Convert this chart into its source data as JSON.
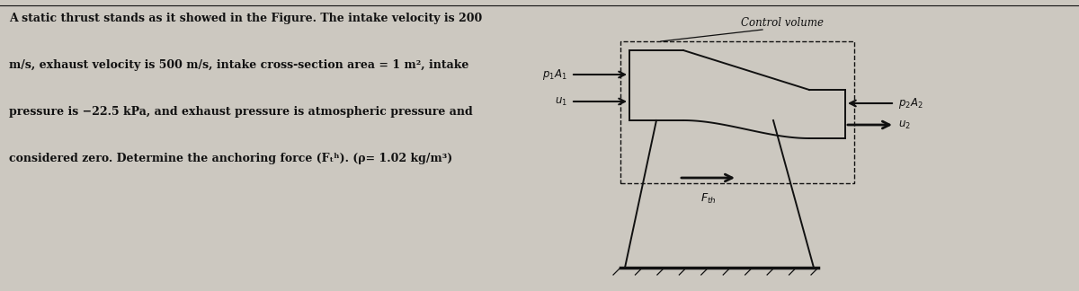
{
  "bg_color": "#ccc8c0",
  "text_color": "#111111",
  "fig_width": 12.0,
  "fig_height": 3.24,
  "problem_text_lines": [
    "A static thrust stands as it showed in the Figure. The intake velocity is 200",
    "m/s, exhaust velocity is 500 m/s, intake cross-section area = 1 m², intake",
    "pressure is −22.5 kPa, and exhaust pressure is atmospheric pressure and",
    "considered zero. Determine the anchoring force (Fₜʰ). (ρ= 1.02 kg/m³)"
  ],
  "control_volume_label": "Control volume",
  "label_p1a1": "$p_1A_1$",
  "label_u1": "$u_1$",
  "label_p2a2": "$p_2A_2$",
  "label_u2": "$u_2$",
  "label_fth": "$F_{th}$"
}
